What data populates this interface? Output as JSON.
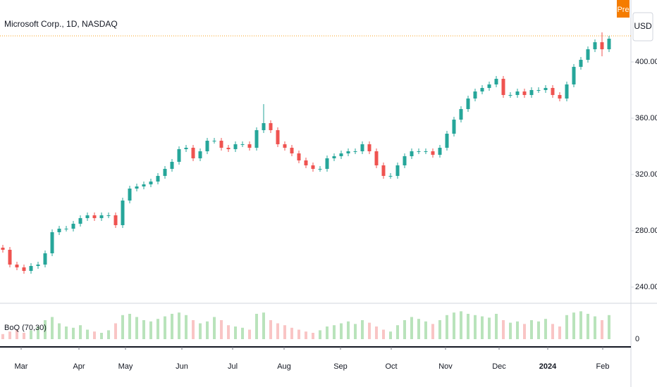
{
  "chart_data": [
    {
      "type": "candlestick",
      "title": "Microsoft Corp., 1D, NASDAQ",
      "badge": "Pre",
      "currency": "USD",
      "up_color": "#26a69a",
      "down_color": "#ef5350",
      "price_line": 418.5,
      "price_line_color": "#f7a21b",
      "xlim": [
        -0.4,
        89.1
      ],
      "ylim": [
        229,
        444
      ],
      "yticks": [
        {
          "value": 240,
          "label": "240.00"
        },
        {
          "value": 280,
          "label": "280.00"
        },
        {
          "value": 320,
          "label": "320.00"
        },
        {
          "value": 360,
          "label": "360.00"
        },
        {
          "value": 400,
          "label": "400.00"
        }
      ],
      "xticks": [
        {
          "value": 2.6,
          "label": "Mar"
        },
        {
          "value": 10.8,
          "label": "Apr"
        },
        {
          "value": 17.4,
          "label": "May"
        },
        {
          "value": 25.4,
          "label": "Jun"
        },
        {
          "value": 32.6,
          "label": "Jul"
        },
        {
          "value": 39.9,
          "label": "Aug"
        },
        {
          "value": 47.9,
          "label": "Sep"
        },
        {
          "value": 55.1,
          "label": "Oct"
        },
        {
          "value": 62.8,
          "label": "Nov"
        },
        {
          "value": 70.4,
          "label": "Dec"
        },
        {
          "value": 77.3,
          "label": "2024"
        },
        {
          "value": 85.1,
          "label": "Feb"
        }
      ],
      "open": [
        268,
        266.5,
        256,
        254,
        251.5,
        255,
        256,
        264,
        279,
        281.5,
        281.5,
        285,
        289,
        291,
        289,
        291,
        291,
        284,
        301.5,
        310,
        311.5,
        313,
        315,
        319,
        324,
        329,
        338,
        339,
        331.5,
        336.5,
        344,
        344,
        339,
        338,
        341.5,
        341.5,
        339,
        351.5,
        356.5,
        351.5,
        341.5,
        339,
        335,
        330,
        326.5,
        324,
        324,
        331.5,
        333,
        335,
        336.5,
        336.5,
        341.5,
        336.5,
        326.5,
        319,
        319,
        326.5,
        333,
        336.5,
        336.5,
        336.5,
        334,
        339,
        349,
        359,
        366.5,
        374,
        379,
        381.5,
        384,
        388,
        376.5,
        376.5,
        379,
        376.5,
        380,
        380,
        381.5,
        376.5,
        374,
        384,
        396.5,
        401.5,
        409,
        414,
        409
      ],
      "high": [
        270,
        268.5,
        258,
        256,
        257,
        258,
        266,
        281,
        283.5,
        283.5,
        287,
        291,
        293,
        293,
        293,
        293,
        293,
        303.5,
        312,
        313.5,
        315,
        317,
        321,
        326,
        331,
        340,
        341,
        341,
        338.5,
        346,
        346,
        346,
        341,
        343.5,
        343.5,
        343.5,
        353.5,
        370,
        358.5,
        353.5,
        343.5,
        341,
        337,
        332,
        328.5,
        326,
        333.5,
        335,
        337,
        338.5,
        338.5,
        343.5,
        343.5,
        338.5,
        328.5,
        321,
        328.5,
        335,
        338.5,
        338.5,
        338.5,
        338.5,
        341,
        351,
        361,
        368.5,
        376,
        381,
        383.5,
        386,
        390,
        390,
        378.5,
        381,
        381,
        382,
        382,
        383.5,
        383.5,
        378.5,
        386,
        398.5,
        403.5,
        411,
        416,
        421,
        418.5
      ],
      "low": [
        264.5,
        254,
        252,
        249.5,
        249.5,
        253,
        254,
        262,
        277,
        279.5,
        279.5,
        283,
        287,
        287,
        287,
        289,
        282,
        282,
        299.5,
        308,
        309.5,
        311,
        313,
        317,
        322,
        327,
        336,
        329.5,
        329.5,
        334.5,
        342,
        337,
        336,
        336,
        339.5,
        337,
        337,
        349.5,
        349.5,
        339.5,
        337,
        333,
        328,
        324.5,
        322,
        322,
        322,
        329.5,
        331,
        333,
        334.5,
        334.5,
        334.5,
        324.5,
        317,
        317,
        317,
        324.5,
        331,
        334.5,
        334.5,
        332,
        332,
        337,
        347,
        357,
        364.5,
        372,
        377,
        379.5,
        382,
        374.5,
        374.5,
        374.5,
        374.5,
        374.5,
        378,
        378,
        374.5,
        372,
        372,
        382,
        394.5,
        399.5,
        407,
        404,
        407
      ],
      "close": [
        266.5,
        256,
        254,
        251.5,
        255,
        256,
        264,
        279,
        281.5,
        281.5,
        285,
        289,
        291,
        289,
        291,
        291,
        284,
        301.5,
        310,
        311.5,
        313,
        315,
        319,
        324,
        329,
        338,
        339,
        331.5,
        336.5,
        344,
        344,
        339,
        338,
        341.5,
        341.5,
        339,
        351.5,
        356.5,
        351.5,
        341.5,
        339,
        335,
        330,
        326.5,
        324,
        324,
        331.5,
        333,
        335,
        336.5,
        336.5,
        341.5,
        336.5,
        326.5,
        319,
        319,
        326.5,
        333,
        336.5,
        336.5,
        336.5,
        334,
        339,
        349,
        359,
        366.5,
        374,
        379,
        381.5,
        384,
        388,
        376.5,
        376.5,
        379,
        376.5,
        380,
        380,
        381.5,
        376.5,
        374,
        384,
        396.5,
        401.5,
        409,
        414,
        409,
        416.5
      ]
    },
    {
      "type": "bar",
      "title": "BoQ (70,30)",
      "up_color": "#b9e3bb",
      "down_color": "#f9c5c5",
      "ylim": [
        0,
        50
      ],
      "yticks": [
        0
      ],
      "values": [
        8,
        12,
        15,
        10,
        14,
        20,
        30,
        35,
        25,
        20,
        18,
        22,
        15,
        12,
        10,
        14,
        25,
        38,
        40,
        35,
        30,
        28,
        32,
        36,
        40,
        42,
        38,
        30,
        25,
        28,
        35,
        30,
        22,
        20,
        18,
        15,
        40,
        42,
        30,
        25,
        22,
        18,
        15,
        12,
        10,
        14,
        20,
        22,
        25,
        28,
        24,
        30,
        26,
        20,
        15,
        12,
        22,
        30,
        35,
        32,
        28,
        24,
        30,
        38,
        42,
        44,
        40,
        38,
        36,
        34,
        40,
        30,
        26,
        28,
        24,
        30,
        28,
        32,
        24,
        20,
        38,
        42,
        44,
        40,
        36,
        30,
        38
      ]
    }
  ]
}
